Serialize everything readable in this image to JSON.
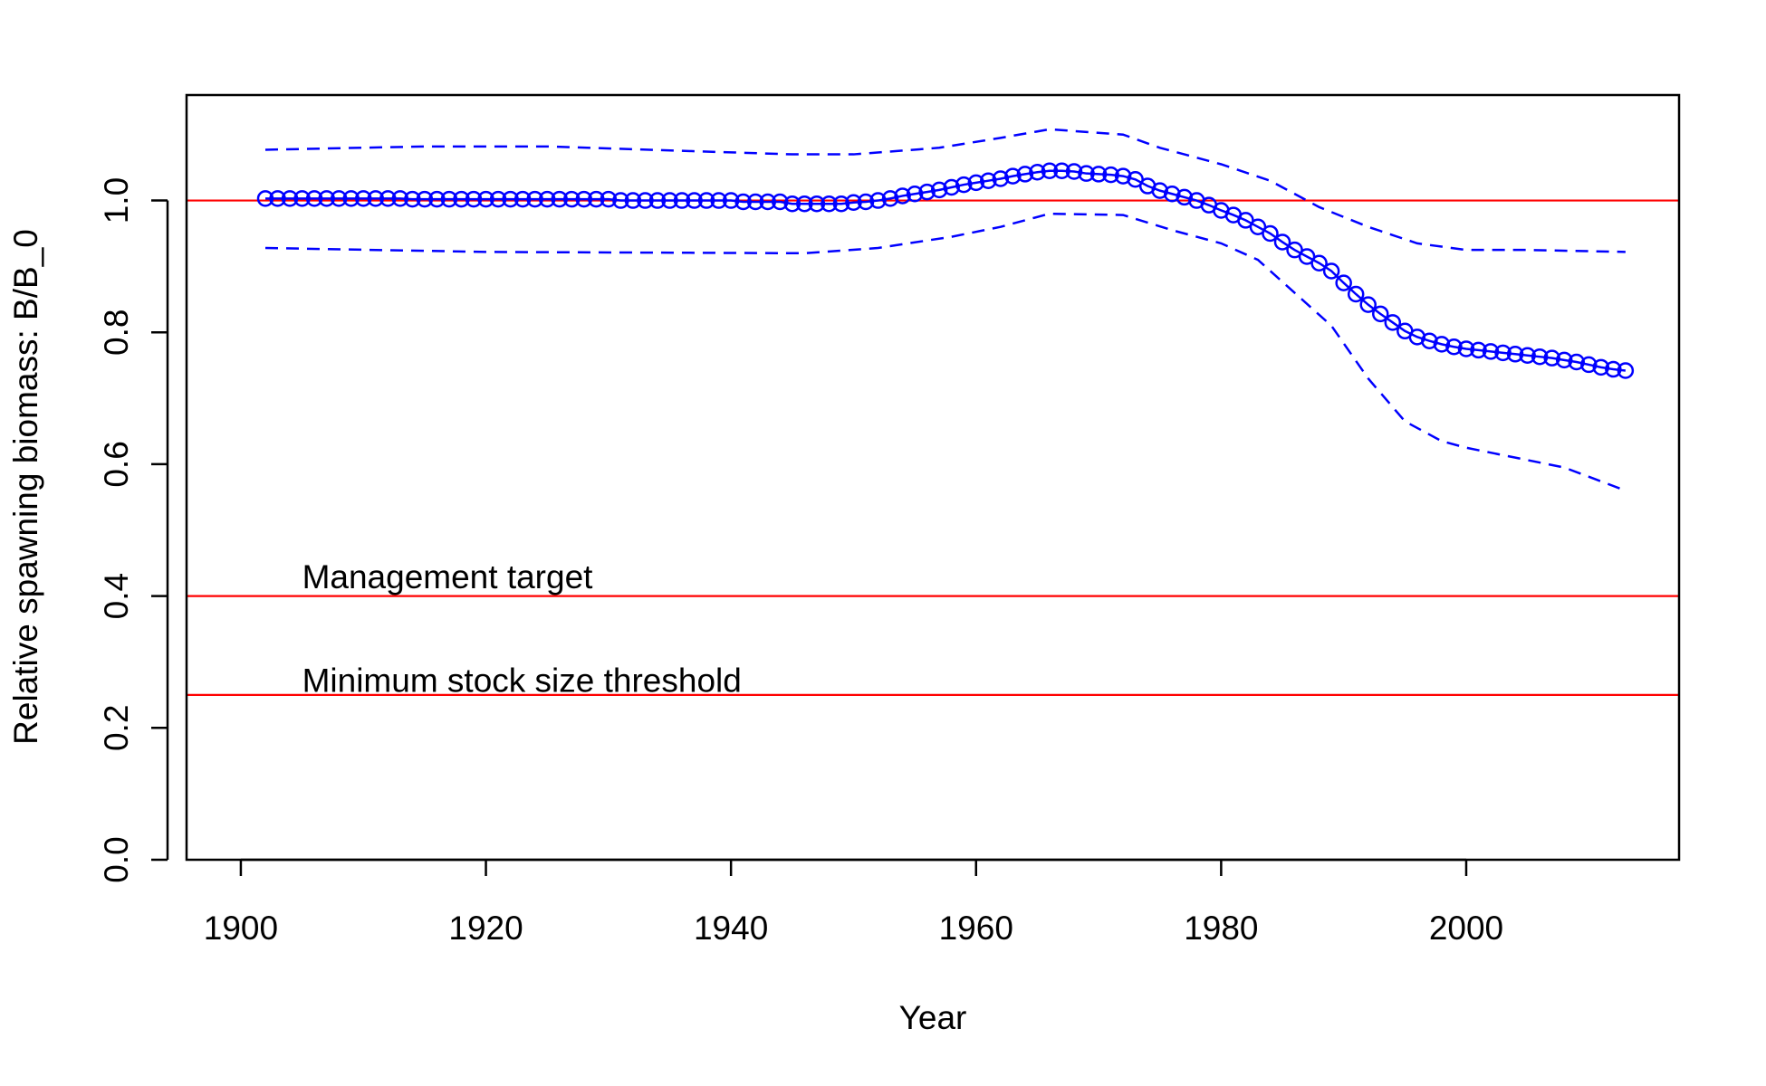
{
  "chart_data": {
    "type": "line",
    "xlabel": "Year",
    "ylabel": "Relative spawning biomass: B/B_0",
    "xlim": [
      1895.57,
      2017.37
    ],
    "ylim": [
      0,
      1.16
    ],
    "xticks": [
      1900,
      1920,
      1940,
      1960,
      1980,
      2000
    ],
    "yticks": [
      {
        "value": 0,
        "label": "0.0"
      },
      {
        "value": 0.2,
        "label": "0.2"
      },
      {
        "value": 0.4,
        "label": "0.4"
      },
      {
        "value": 0.6,
        "label": "0.6"
      },
      {
        "value": 0.8,
        "label": "0.8"
      },
      {
        "value": 1,
        "label": "1.0"
      }
    ],
    "hlines": [
      {
        "value": 1,
        "color": "#ff0000"
      },
      {
        "value": 0.4,
        "color": "#ff0000"
      },
      {
        "value": 0.25,
        "color": "#ff0000"
      }
    ],
    "annotations": [
      {
        "text": "Management target",
        "x": 1905,
        "y": 0.425
      },
      {
        "text": "Minimum stock size threshold",
        "x": 1905,
        "y": 0.268
      }
    ],
    "series": [
      {
        "style": "points",
        "color": "#0000ff",
        "x": [
          1902,
          1903,
          1904,
          1905,
          1906,
          1907,
          1908,
          1909,
          1910,
          1911,
          1912,
          1913,
          1914,
          1915,
          1916,
          1917,
          1918,
          1919,
          1920,
          1921,
          1922,
          1923,
          1924,
          1925,
          1926,
          1927,
          1928,
          1929,
          1930,
          1931,
          1932,
          1933,
          1934,
          1935,
          1936,
          1937,
          1938,
          1939,
          1940,
          1941,
          1942,
          1943,
          1944,
          1945,
          1946,
          1947,
          1948,
          1949,
          1950,
          1951,
          1952,
          1953,
          1954,
          1955,
          1956,
          1957,
          1958,
          1959,
          1960,
          1961,
          1962,
          1963,
          1964,
          1965,
          1966,
          1967,
          1968,
          1969,
          1970,
          1971,
          1972,
          1973,
          1974,
          1975,
          1976,
          1977,
          1978,
          1979,
          1980,
          1981,
          1982,
          1983,
          1984,
          1985,
          1986,
          1987,
          1988,
          1989,
          1990,
          1991,
          1992,
          1993,
          1994,
          1995,
          1996,
          1997,
          1998,
          1999,
          2000,
          2001,
          2002,
          2003,
          2004,
          2005,
          2006,
          2007,
          2008,
          2009,
          2010,
          2011,
          2012,
          2013
        ],
        "values": [
          1.003,
          1.003,
          1.003,
          1.003,
          1.003,
          1.003,
          1.003,
          1.003,
          1.003,
          1.003,
          1.003,
          1.003,
          1.002,
          1.002,
          1.002,
          1.002,
          1.002,
          1.002,
          1.002,
          1.002,
          1.002,
          1.002,
          1.002,
          1.002,
          1.002,
          1.002,
          1.002,
          1.002,
          1.002,
          1.0,
          1.0,
          1.0,
          1.0,
          1.0,
          1.0,
          1.0,
          1.0,
          1.0,
          1.0,
          0.998,
          0.998,
          0.998,
          0.998,
          0.995,
          0.995,
          0.995,
          0.995,
          0.995,
          0.997,
          0.998,
          1.0,
          1.003,
          1.007,
          1.01,
          1.013,
          1.016,
          1.02,
          1.024,
          1.027,
          1.03,
          1.033,
          1.037,
          1.04,
          1.043,
          1.045,
          1.045,
          1.044,
          1.041,
          1.04,
          1.039,
          1.037,
          1.032,
          1.022,
          1.015,
          1.01,
          1.005,
          1.0,
          0.993,
          0.985,
          0.978,
          0.97,
          0.96,
          0.95,
          0.937,
          0.925,
          0.915,
          0.905,
          0.893,
          0.875,
          0.858,
          0.842,
          0.828,
          0.815,
          0.802,
          0.793,
          0.787,
          0.782,
          0.778,
          0.775,
          0.773,
          0.771,
          0.769,
          0.767,
          0.765,
          0.763,
          0.761,
          0.758,
          0.755,
          0.751,
          0.747,
          0.744,
          0.742
        ]
      },
      {
        "style": "dashed",
        "color": "#0000ff",
        "x": [
          1902,
          1915,
          1925,
          1945,
          1950,
          1957,
          1962,
          1966,
          1972,
          1975,
          1980,
          1984,
          1988,
          1992,
          1996,
          2000,
          2005,
          2013
        ],
        "values": [
          1.077,
          1.082,
          1.082,
          1.07,
          1.07,
          1.08,
          1.095,
          1.108,
          1.1,
          1.08,
          1.055,
          1.03,
          0.99,
          0.96,
          0.935,
          0.925,
          0.925,
          0.922
        ]
      },
      {
        "style": "dashed",
        "color": "#0000ff",
        "x": [
          1902,
          1920,
          1946,
          1952,
          1958,
          1962,
          1966,
          1972,
          1976,
          1980,
          1983,
          1986,
          1989,
          1992,
          1995,
          1998,
          2000,
          2004,
          2008,
          2013
        ],
        "values": [
          0.928,
          0.922,
          0.92,
          0.928,
          0.945,
          0.96,
          0.98,
          0.978,
          0.955,
          0.935,
          0.91,
          0.86,
          0.81,
          0.73,
          0.665,
          0.635,
          0.625,
          0.61,
          0.595,
          0.56
        ]
      }
    ]
  }
}
